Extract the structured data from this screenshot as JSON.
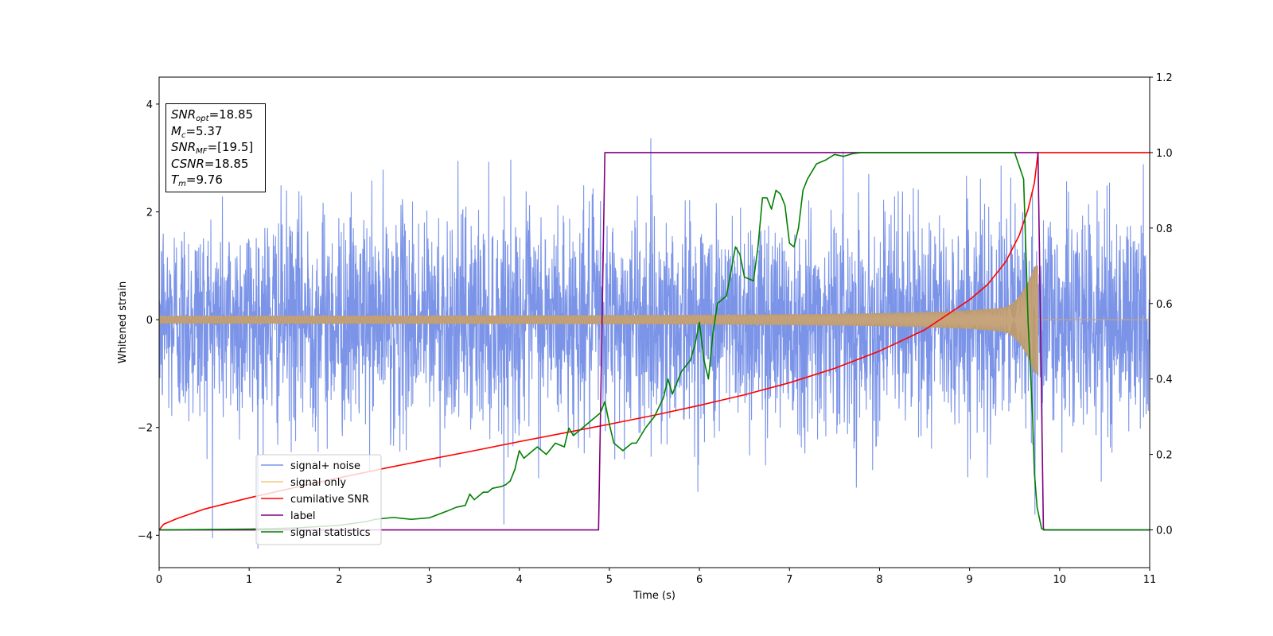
{
  "chart_data": {
    "type": "line",
    "xlabel": "Time (s)",
    "ylabel": "Whitened strain",
    "xlim": [
      0,
      11
    ],
    "ylim_left": [
      -4.6,
      4.5
    ],
    "ylim_right": [
      -0.1,
      1.2
    ],
    "x_ticks": [
      "0",
      "1",
      "2",
      "3",
      "4",
      "5",
      "6",
      "7",
      "8",
      "9",
      "10",
      "11"
    ],
    "y_left_ticks": [
      {
        "v": -4,
        "label": "−4"
      },
      {
        "v": -2,
        "label": "−2"
      },
      {
        "v": 0,
        "label": "0"
      },
      {
        "v": 2,
        "label": "2"
      },
      {
        "v": 4,
        "label": "4"
      }
    ],
    "y_right_ticks": [
      {
        "v": 0.0,
        "label": "0.0"
      },
      {
        "v": 0.2,
        "label": "0.2"
      },
      {
        "v": 0.4,
        "label": "0.4"
      },
      {
        "v": 0.6,
        "label": "0.6"
      },
      {
        "v": 0.8,
        "label": "0.8"
      },
      {
        "v": 1.0,
        "label": "1.0"
      },
      {
        "v": 1.2,
        "label": "1.2"
      }
    ],
    "grid": false,
    "legend_position": "lower-left",
    "series": [
      {
        "name": "signal+ noise",
        "axis": "left",
        "color": "#7b94e8",
        "kind": "noisy-signal",
        "noise_sigma": 1.0,
        "tmerge": 9.76
      },
      {
        "name": "signal only",
        "axis": "left",
        "color": "#f5c77e",
        "kind": "chirp",
        "tmerge": 9.76,
        "amplitude_start": 0.07,
        "amplitude_peak": 1.0
      },
      {
        "name": "cumilative SNR",
        "axis": "right",
        "color": "#ff0000",
        "x": [
          0,
          0.05,
          0.2,
          0.5,
          1,
          1.5,
          2,
          2.5,
          3,
          3.5,
          4,
          4.5,
          5,
          5.5,
          6,
          6.5,
          7,
          7.5,
          8,
          8.5,
          9,
          9.2,
          9.4,
          9.55,
          9.65,
          9.72,
          9.76,
          10,
          11
        ],
        "y": [
          0.0,
          0.015,
          0.03,
          0.055,
          0.085,
          0.112,
          0.138,
          0.163,
          0.187,
          0.21,
          0.234,
          0.257,
          0.28,
          0.304,
          0.33,
          0.358,
          0.39,
          0.428,
          0.474,
          0.53,
          0.61,
          0.65,
          0.71,
          0.78,
          0.85,
          0.92,
          1.0,
          1.0,
          1.0
        ]
      },
      {
        "name": "label",
        "axis": "right",
        "color": "#800080",
        "x": [
          0,
          4.88,
          4.95,
          9.76,
          9.82,
          11
        ],
        "y": [
          0,
          0,
          1,
          1,
          0,
          0
        ]
      },
      {
        "name": "signal statistics",
        "axis": "right",
        "color": "#008000",
        "x": [
          0,
          1,
          1.5,
          2,
          2.3,
          2.4,
          2.6,
          2.8,
          3.0,
          3.2,
          3.3,
          3.4,
          3.45,
          3.5,
          3.6,
          3.65,
          3.7,
          3.8,
          3.85,
          3.9,
          3.95,
          4.0,
          4.05,
          4.1,
          4.2,
          4.3,
          4.4,
          4.5,
          4.55,
          4.6,
          4.7,
          4.75,
          4.8,
          4.9,
          4.95,
          5.0,
          5.05,
          5.15,
          5.25,
          5.3,
          5.4,
          5.5,
          5.6,
          5.65,
          5.7,
          5.8,
          5.9,
          5.95,
          6.0,
          6.05,
          6.1,
          6.15,
          6.2,
          6.3,
          6.4,
          6.45,
          6.5,
          6.6,
          6.65,
          6.7,
          6.75,
          6.8,
          6.85,
          6.9,
          6.95,
          7.0,
          7.05,
          7.1,
          7.15,
          7.2,
          7.3,
          7.4,
          7.5,
          7.6,
          7.7,
          7.8,
          8.0,
          8.5,
          9.0,
          9.5,
          9.6,
          9.65,
          9.7,
          9.72,
          9.75,
          9.8,
          9.85,
          9.9,
          10.0,
          11.0
        ],
        "y": [
          0,
          0.002,
          0.005,
          0.012,
          0.022,
          0.028,
          0.033,
          0.028,
          0.032,
          0.05,
          0.06,
          0.065,
          0.095,
          0.08,
          0.1,
          0.1,
          0.11,
          0.115,
          0.12,
          0.13,
          0.16,
          0.21,
          0.19,
          0.2,
          0.22,
          0.2,
          0.23,
          0.22,
          0.27,
          0.25,
          0.27,
          0.28,
          0.29,
          0.31,
          0.34,
          0.28,
          0.23,
          0.21,
          0.23,
          0.23,
          0.27,
          0.3,
          0.35,
          0.4,
          0.36,
          0.42,
          0.45,
          0.49,
          0.55,
          0.45,
          0.4,
          0.52,
          0.6,
          0.62,
          0.75,
          0.73,
          0.67,
          0.66,
          0.75,
          0.88,
          0.88,
          0.85,
          0.9,
          0.89,
          0.86,
          0.76,
          0.75,
          0.8,
          0.9,
          0.93,
          0.97,
          0.98,
          0.995,
          0.99,
          0.997,
          1.0,
          1.0,
          1.0,
          1.0,
          1.0,
          0.93,
          0.55,
          0.3,
          0.15,
          0.06,
          0.003,
          0.0,
          0.0,
          0.0,
          0.0
        ]
      }
    ],
    "legend": [
      "signal+ noise",
      "signal only",
      "cumilative SNR",
      "label",
      "signal statistics"
    ]
  },
  "annotation_box": [
    {
      "sym": "SNR",
      "sub": "opt",
      "value": "=18.85"
    },
    {
      "sym": "M",
      "sub": "c",
      "value": "=5.37"
    },
    {
      "sym": "SNR",
      "sub": "MF",
      "value": "=[19.5]"
    },
    {
      "sym": "CSNR",
      "sub": "",
      "value": "=18.85"
    },
    {
      "sym": "T",
      "sub": "m",
      "value": "=9.76"
    }
  ]
}
